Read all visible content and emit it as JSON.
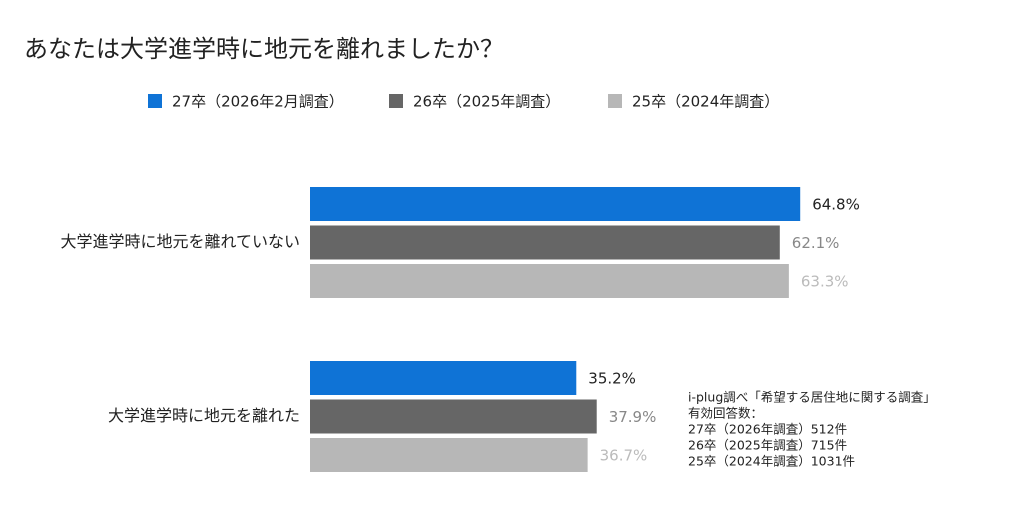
{
  "chart_data": {
    "type": "bar",
    "orientation": "horizontal",
    "title": "あなたは大学進学時に地元を離れましたか？",
    "categories": [
      "大学進学時に地元を離れていない",
      "大学進学時に地元を離れた"
    ],
    "series": [
      {
        "name": "27卒（2026年2月調査）",
        "color": "#0f73d6",
        "values": [
          64.8,
          35.2
        ],
        "value_labels": [
          "64.8%",
          "35.2%"
        ]
      },
      {
        "name": "26卒（2025年調査）",
        "color": "#666666",
        "values": [
          62.1,
          37.9
        ],
        "value_labels": [
          "62.1%",
          "37.9%"
        ]
      },
      {
        "name": "25卒（2024年調査）",
        "color": "#b7b7b7",
        "values": [
          63.3,
          36.7
        ],
        "value_labels": [
          "63.3%",
          "36.7%"
        ]
      }
    ],
    "annotation": [
      "i-plug調べ「希望する居住地に関する調査」",
      "有効回答数：",
      "27卒（2026年調査）512件",
      "26卒（2025年調査）715件",
      "25卒（2024年調査）1031件"
    ]
  }
}
